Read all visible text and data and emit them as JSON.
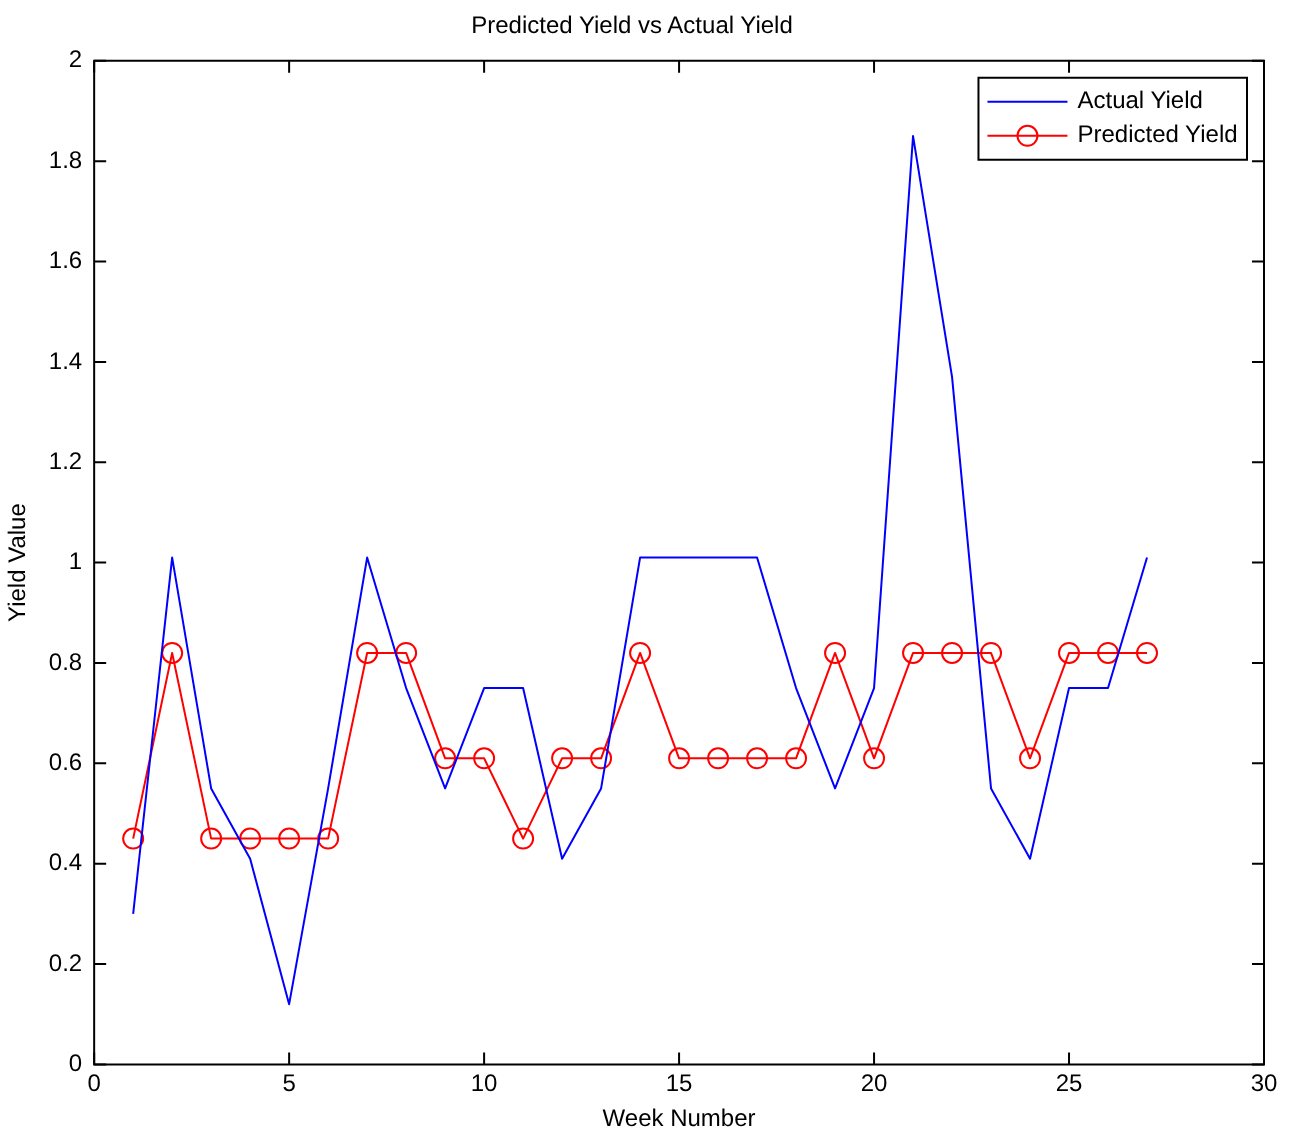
{
  "chart_data": {
    "type": "line",
    "title": "Predicted Yield vs Actual Yield",
    "xlabel": "Week Number",
    "ylabel": "Yield Value",
    "x": [
      1,
      2,
      3,
      4,
      5,
      6,
      7,
      8,
      9,
      10,
      11,
      12,
      13,
      14,
      15,
      16,
      17,
      18,
      19,
      20,
      21,
      22,
      23,
      24,
      25,
      26,
      27
    ],
    "series": [
      {
        "name": "Actual Yield",
        "color": "#0000ff",
        "marker": "none",
        "values": [
          0.3,
          1.01,
          0.55,
          0.41,
          0.12,
          0.55,
          1.01,
          0.75,
          0.55,
          0.75,
          0.75,
          0.41,
          0.55,
          1.01,
          1.01,
          1.01,
          1.01,
          0.75,
          0.55,
          0.75,
          1.85,
          1.37,
          0.55,
          0.41,
          0.75,
          0.75,
          1.01
        ]
      },
      {
        "name": "Predicted Yield",
        "color": "#ff0000",
        "marker": "circle",
        "values": [
          0.45,
          0.82,
          0.45,
          0.45,
          0.45,
          0.45,
          0.82,
          0.82,
          0.61,
          0.61,
          0.45,
          0.61,
          0.61,
          0.82,
          0.61,
          0.61,
          0.61,
          0.61,
          0.82,
          0.61,
          0.82,
          0.82,
          0.82,
          0.61,
          0.82,
          0.82,
          0.82
        ]
      }
    ],
    "xlim": [
      0,
      30
    ],
    "xticks": [
      0,
      5,
      10,
      15,
      20,
      25,
      30
    ],
    "ylim": [
      0,
      2
    ],
    "yticks": [
      0,
      0.2,
      0.4,
      0.6,
      0.8,
      1,
      1.2,
      1.4,
      1.6,
      1.8,
      2
    ],
    "grid": false,
    "legend": "top right",
    "line_style": "solid"
  }
}
